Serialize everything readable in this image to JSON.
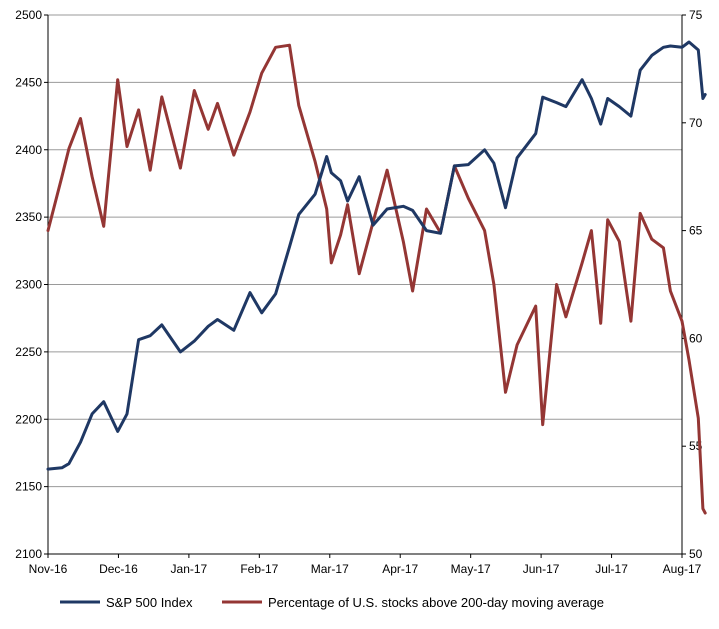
{
  "chart_data": {
    "type": "line",
    "title": "",
    "x_tick_labels": [
      "Nov-16",
      "Dec-16",
      "Jan-17",
      "Feb-17",
      "Mar-17",
      "Apr-17",
      "May-17",
      "Jun-17",
      "Jul-17",
      "Aug-17"
    ],
    "y_left": {
      "ylim": [
        2100,
        2500
      ],
      "ticks": [
        2100,
        2150,
        2200,
        2250,
        2300,
        2350,
        2400,
        2450,
        2500
      ]
    },
    "y_right": {
      "ylim": [
        50,
        75
      ],
      "ticks": [
        50,
        55,
        60,
        65,
        70,
        75
      ]
    },
    "grid": true,
    "legend_position": "bottom",
    "colors": {
      "sp500": "#1f3864",
      "pct200": "#943634",
      "grid": "#9a9a9a",
      "axis": "#000000"
    },
    "x": [
      "2016-11-01",
      "2016-11-07",
      "2016-11-10",
      "2016-11-15",
      "2016-11-20",
      "2016-11-25",
      "2016-12-01",
      "2016-12-05",
      "2016-12-10",
      "2016-12-15",
      "2016-12-20",
      "2016-12-28",
      "2017-01-03",
      "2017-01-09",
      "2017-01-13",
      "2017-01-20",
      "2017-01-27",
      "2017-02-01",
      "2017-02-07",
      "2017-02-13",
      "2017-02-17",
      "2017-02-24",
      "2017-03-01",
      "2017-03-03",
      "2017-03-07",
      "2017-03-10",
      "2017-03-15",
      "2017-03-21",
      "2017-03-27",
      "2017-04-03",
      "2017-04-07",
      "2017-04-13",
      "2017-04-19",
      "2017-04-25",
      "2017-05-01",
      "2017-05-08",
      "2017-05-12",
      "2017-05-17",
      "2017-05-22",
      "2017-05-30",
      "2017-06-02",
      "2017-06-08",
      "2017-06-12",
      "2017-06-19",
      "2017-06-23",
      "2017-06-27",
      "2017-06-30",
      "2017-07-05",
      "2017-07-10",
      "2017-07-14",
      "2017-07-19",
      "2017-07-24",
      "2017-07-27",
      "2017-08-01",
      "2017-08-04",
      "2017-08-08",
      "2017-08-10",
      "2017-08-11"
    ],
    "series": [
      {
        "name": "S&P 500 Index",
        "axis": "left",
        "values": [
          2163,
          2164,
          2167,
          2183,
          2204,
          2213,
          2191,
          2204,
          2259,
          2262,
          2270,
          2250,
          2258,
          2269,
          2274,
          2266,
          2294,
          2279,
          2293,
          2328,
          2352,
          2367,
          2395,
          2383,
          2377,
          2362,
          2380,
          2344,
          2356,
          2358,
          2355,
          2340,
          2338,
          2388,
          2389,
          2400,
          2390,
          2357,
          2394,
          2412,
          2439,
          2435,
          2432,
          2452,
          2438,
          2419,
          2438,
          2432,
          2425,
          2459,
          2470,
          2476,
          2477,
          2476,
          2480,
          2474,
          2438,
          2441
        ]
      },
      {
        "name": "Percentage of U.S. stocks above 200-day moving average",
        "axis": "right",
        "values": [
          65.0,
          67.5,
          68.8,
          70.2,
          67.5,
          65.2,
          72.0,
          68.9,
          70.6,
          67.8,
          71.2,
          67.9,
          71.5,
          69.7,
          70.9,
          68.5,
          70.5,
          72.3,
          73.5,
          73.6,
          70.8,
          68.2,
          66.0,
          63.5,
          64.8,
          66.2,
          63.0,
          65.4,
          67.8,
          64.5,
          62.2,
          66.0,
          64.9,
          68.0,
          66.5,
          65.0,
          62.5,
          57.5,
          59.7,
          61.5,
          56.0,
          62.5,
          61.0,
          63.5,
          65.0,
          60.7,
          65.5,
          64.5,
          60.8,
          65.8,
          64.6,
          64.2,
          62.2,
          60.8,
          59.0,
          56.3,
          52.1,
          51.9
        ]
      }
    ]
  }
}
